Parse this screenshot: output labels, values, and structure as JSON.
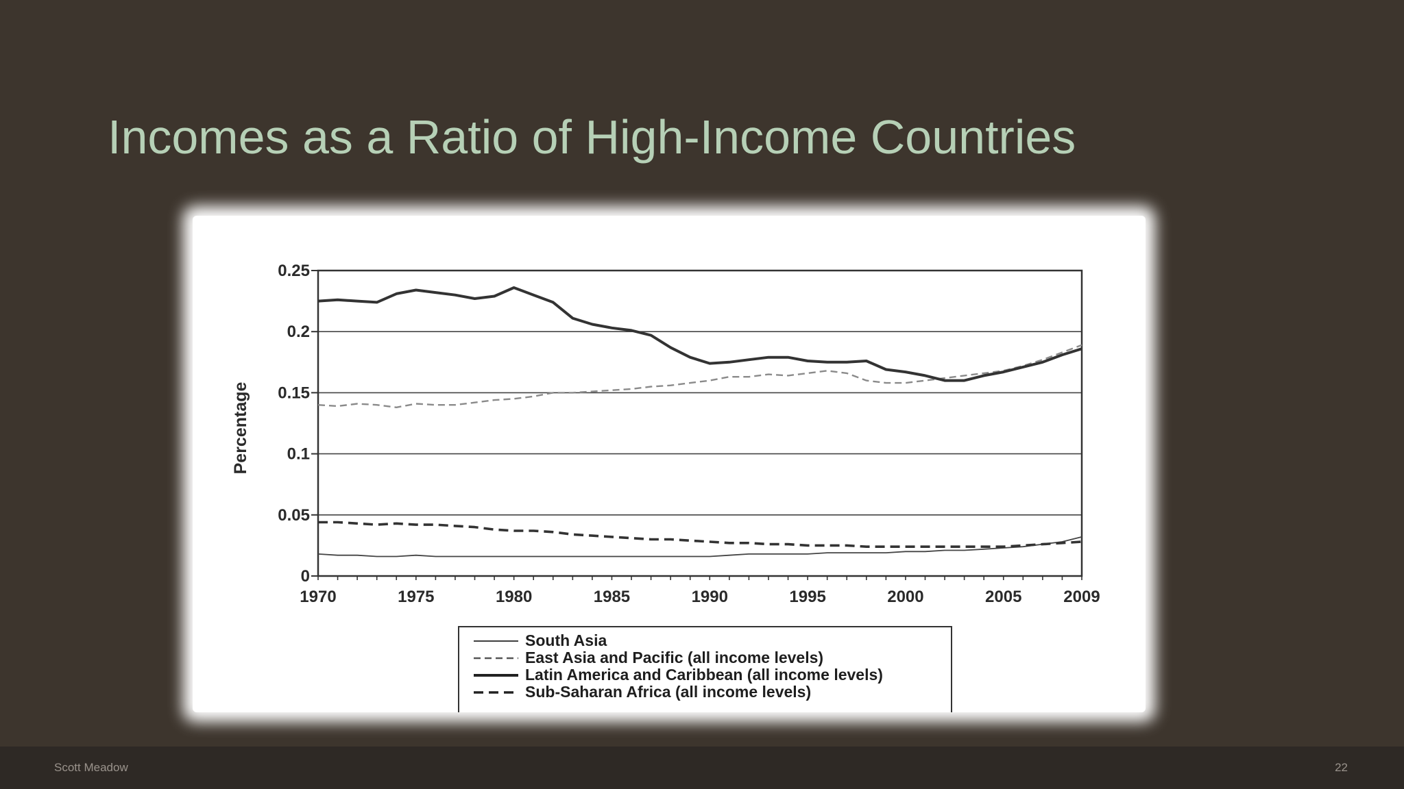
{
  "slide": {
    "title": "Incomes as a Ratio of High-Income Countries",
    "author": "Scott Meadow",
    "page_number": "22"
  },
  "colors": {
    "background": "#3d352d",
    "title": "#b6d0b6",
    "footer_bar": "#2e2925",
    "footer_text": "#9a938c"
  },
  "chart_data": {
    "type": "line",
    "title": "",
    "xlabel": "",
    "ylabel": "Percentage",
    "xlim": [
      1970,
      2009
    ],
    "ylim": [
      0,
      0.25
    ],
    "x_ticks": [
      1970,
      1975,
      1980,
      1985,
      1990,
      1995,
      2000,
      2005,
      2009
    ],
    "y_ticks": [
      0,
      0.05,
      0.1,
      0.15,
      0.2,
      0.25
    ],
    "y_tick_labels": [
      "0",
      "0.05",
      "0.1",
      "0.15",
      "0.2",
      "0.25"
    ],
    "grid": "horizontal",
    "legend_position": "bottom",
    "x": [
      1970,
      1971,
      1972,
      1973,
      1974,
      1975,
      1976,
      1977,
      1978,
      1979,
      1980,
      1981,
      1982,
      1983,
      1984,
      1985,
      1986,
      1987,
      1988,
      1989,
      1990,
      1991,
      1992,
      1993,
      1994,
      1995,
      1996,
      1997,
      1998,
      1999,
      2000,
      2001,
      2002,
      2003,
      2004,
      2005,
      2006,
      2007,
      2008,
      2009
    ],
    "series": [
      {
        "name": "South Asia",
        "style": "thin-solid",
        "values": [
          0.018,
          0.017,
          0.017,
          0.016,
          0.016,
          0.017,
          0.016,
          0.016,
          0.016,
          0.016,
          0.016,
          0.016,
          0.016,
          0.016,
          0.016,
          0.016,
          0.016,
          0.016,
          0.016,
          0.016,
          0.016,
          0.017,
          0.018,
          0.018,
          0.018,
          0.018,
          0.019,
          0.019,
          0.019,
          0.019,
          0.02,
          0.02,
          0.021,
          0.021,
          0.022,
          0.023,
          0.024,
          0.026,
          0.028,
          0.032
        ]
      },
      {
        "name": "East Asia and Pacific (all income levels)",
        "style": "thin-dashed",
        "values": [
          0.14,
          0.139,
          0.141,
          0.14,
          0.138,
          0.141,
          0.14,
          0.14,
          0.142,
          0.144,
          0.145,
          0.147,
          0.15,
          0.15,
          0.151,
          0.152,
          0.153,
          0.155,
          0.156,
          0.158,
          0.16,
          0.163,
          0.163,
          0.165,
          0.164,
          0.166,
          0.168,
          0.166,
          0.16,
          0.158,
          0.158,
          0.16,
          0.162,
          0.164,
          0.166,
          0.168,
          0.172,
          0.177,
          0.183,
          0.189
        ]
      },
      {
        "name": "Latin America and Caribbean (all income levels)",
        "style": "thick-solid",
        "values": [
          0.225,
          0.226,
          0.225,
          0.224,
          0.231,
          0.234,
          0.232,
          0.23,
          0.227,
          0.229,
          0.236,
          0.23,
          0.224,
          0.211,
          0.206,
          0.203,
          0.201,
          0.197,
          0.187,
          0.179,
          0.174,
          0.175,
          0.177,
          0.179,
          0.179,
          0.176,
          0.175,
          0.175,
          0.176,
          0.169,
          0.167,
          0.164,
          0.16,
          0.16,
          0.164,
          0.167,
          0.171,
          0.175,
          0.181,
          0.186
        ]
      },
      {
        "name": "Sub-Saharan Africa (all income levels)",
        "style": "thick-dashed",
        "values": [
          0.044,
          0.044,
          0.043,
          0.042,
          0.043,
          0.042,
          0.042,
          0.041,
          0.04,
          0.038,
          0.037,
          0.037,
          0.036,
          0.034,
          0.033,
          0.032,
          0.031,
          0.03,
          0.03,
          0.029,
          0.028,
          0.027,
          0.027,
          0.026,
          0.026,
          0.025,
          0.025,
          0.025,
          0.024,
          0.024,
          0.024,
          0.024,
          0.024,
          0.024,
          0.024,
          0.024,
          0.025,
          0.026,
          0.027,
          0.028
        ]
      }
    ]
  }
}
